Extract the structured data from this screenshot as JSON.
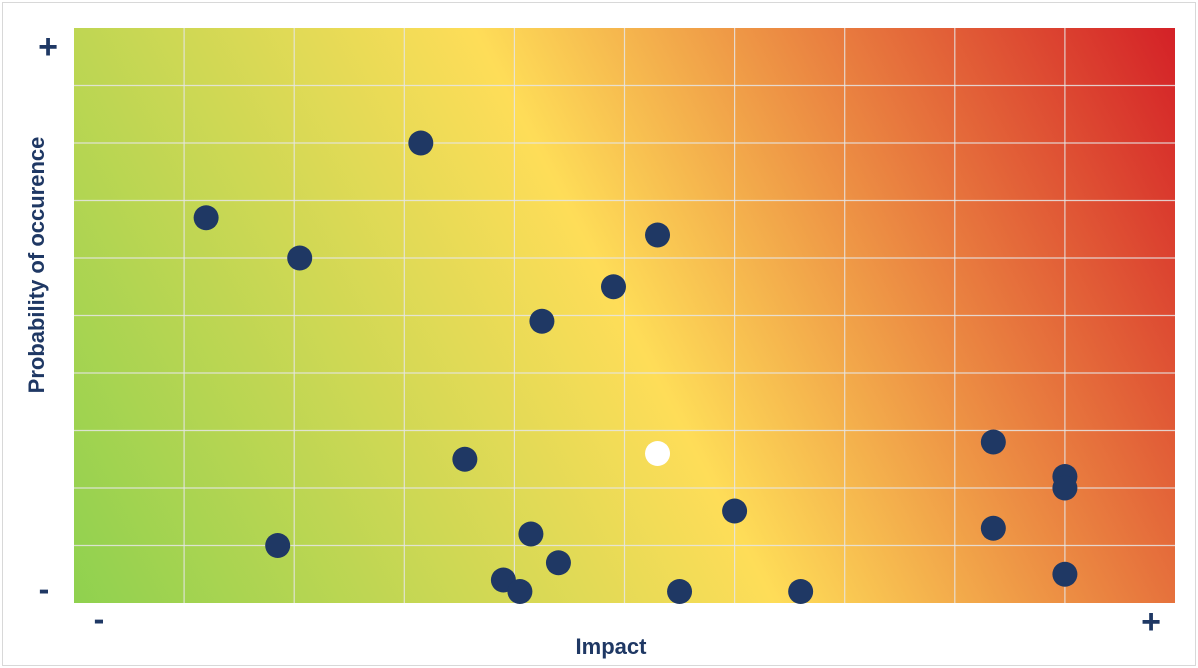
{
  "chart_data": {
    "type": "scatter",
    "title": "",
    "xlabel": "Impact",
    "ylabel": "Probability of occurence",
    "xlim": [
      0,
      10
    ],
    "ylim": [
      0,
      10
    ],
    "grid": true,
    "x_min_label": "-",
    "x_max_label": "+",
    "y_min_label": "-",
    "y_max_label": "+",
    "background_gradient": {
      "low": "#8fd14f",
      "mid": "#fedd58",
      "high": "#d42127"
    },
    "series": [
      {
        "color": "#1f3864",
        "points": [
          {
            "x": 1.2,
            "y": 6.7
          },
          {
            "x": 2.05,
            "y": 6.0
          },
          {
            "x": 3.15,
            "y": 8.0
          },
          {
            "x": 1.85,
            "y": 1.0
          },
          {
            "x": 3.55,
            "y": 2.5
          },
          {
            "x": 4.25,
            "y": 4.9
          },
          {
            "x": 4.9,
            "y": 5.5
          },
          {
            "x": 5.3,
            "y": 6.4
          },
          {
            "x": 4.15,
            "y": 1.2
          },
          {
            "x": 4.4,
            "y": 0.7
          },
          {
            "x": 3.9,
            "y": 0.4
          },
          {
            "x": 4.05,
            "y": 0.2
          },
          {
            "x": 5.5,
            "y": 0.2
          },
          {
            "x": 6.0,
            "y": 1.6
          },
          {
            "x": 6.6,
            "y": 0.2
          },
          {
            "x": 8.35,
            "y": 2.8
          },
          {
            "x": 8.35,
            "y": 1.3
          },
          {
            "x": 9.0,
            "y": 2.2
          },
          {
            "x": 9.0,
            "y": 2.0
          },
          {
            "x": 9.0,
            "y": 0.5
          }
        ]
      },
      {
        "color": "#ffffff",
        "points": [
          {
            "x": 5.3,
            "y": 2.6
          }
        ]
      }
    ]
  }
}
